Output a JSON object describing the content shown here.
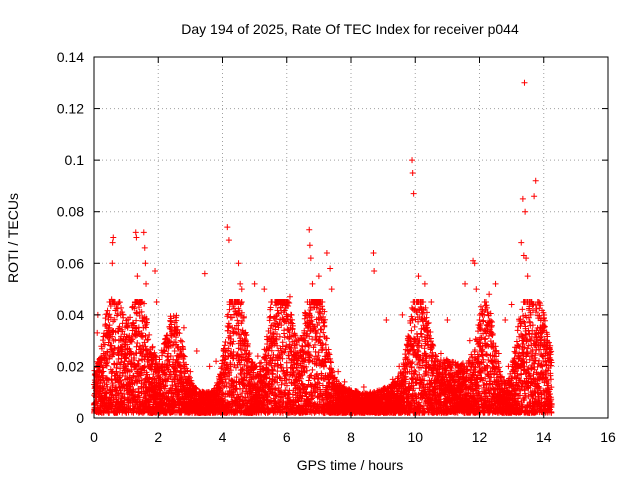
{
  "chart_data": {
    "type": "scatter",
    "title": "Day 194 of 2025, Rate Of TEC Index for receiver p044",
    "xlabel": "GPS time / hours",
    "ylabel": "ROTI / TECUs",
    "xlim": [
      0,
      16
    ],
    "ylim": [
      0,
      0.14
    ],
    "grid": true,
    "marker": "+",
    "marker_color": "#ff0000",
    "x_ticks": [
      0,
      2,
      4,
      6,
      8,
      10,
      12,
      14,
      16
    ],
    "x_tick_labels": [
      "0",
      "2",
      "4",
      "6",
      "8",
      "10",
      "12",
      "14",
      "16"
    ],
    "y_ticks": [
      0,
      0.02,
      0.04,
      0.06,
      0.08,
      0.1,
      0.12,
      0.14
    ],
    "y_tick_labels": [
      "0",
      "0.02",
      "0.04",
      "0.06",
      "0.08",
      "0.1",
      "0.12",
      "0.14"
    ],
    "series": [
      {
        "name": "ROTI",
        "x": [
          0.1,
          0.12,
          0.15,
          0.3,
          0.55,
          0.57,
          0.6,
          0.58,
          0.62,
          0.9,
          1.05,
          1.3,
          1.32,
          1.35,
          1.4,
          1.55,
          1.58,
          1.6,
          1.62,
          1.9,
          1.95,
          2.8,
          3.45,
          4.15,
          4.2,
          4.5,
          4.55,
          4.6,
          5.0,
          5.3,
          6.1,
          6.7,
          6.72,
          6.75,
          6.8,
          7.0,
          7.25,
          7.35,
          7.4,
          8.7,
          8.72,
          9.1,
          9.6,
          9.9,
          9.92,
          9.95,
          10.1,
          10.3,
          10.5,
          11.0,
          11.55,
          11.8,
          11.85,
          11.9,
          12.1,
          12.3,
          12.5,
          12.8,
          13.0,
          13.3,
          13.35,
          13.38,
          13.4,
          13.42,
          13.45,
          13.5,
          13.7,
          13.75,
          14.0,
          14.1,
          14.2,
          0.05,
          0.2,
          0.4,
          0.7,
          0.95,
          1.15,
          1.45,
          1.7,
          1.85,
          2.1,
          2.3,
          2.5,
          2.7,
          3.0,
          3.2,
          3.6,
          3.8,
          4.0,
          4.3,
          4.7,
          4.9,
          5.1,
          5.5,
          5.7,
          5.9,
          6.3,
          6.5,
          6.9,
          7.1,
          7.6,
          7.8,
          8.0,
          8.2,
          8.4,
          8.6,
          8.9,
          9.3,
          9.5,
          9.8,
          10.2,
          10.6,
          10.8,
          11.2,
          11.4,
          11.7,
          12.0,
          12.2,
          12.6,
          12.9,
          13.1,
          13.6,
          13.9,
          14.05
        ],
        "y": [
          0.033,
          0.04,
          0.02,
          0.025,
          0.046,
          0.06,
          0.07,
          0.068,
          0.045,
          0.04,
          0.035,
          0.072,
          0.07,
          0.055,
          0.043,
          0.072,
          0.066,
          0.06,
          0.052,
          0.057,
          0.045,
          0.035,
          0.056,
          0.074,
          0.069,
          0.06,
          0.052,
          0.05,
          0.052,
          0.05,
          0.047,
          0.073,
          0.067,
          0.062,
          0.052,
          0.055,
          0.064,
          0.058,
          0.05,
          0.064,
          0.057,
          0.038,
          0.04,
          0.1,
          0.095,
          0.087,
          0.055,
          0.052,
          0.045,
          0.038,
          0.052,
          0.061,
          0.06,
          0.05,
          0.04,
          0.048,
          0.052,
          0.038,
          0.044,
          0.068,
          0.085,
          0.063,
          0.13,
          0.08,
          0.062,
          0.055,
          0.086,
          0.092,
          0.035,
          0.03,
          0.028,
          0.012,
          0.015,
          0.01,
          0.018,
          0.022,
          0.03,
          0.025,
          0.02,
          0.017,
          0.02,
          0.024,
          0.015,
          0.03,
          0.018,
          0.026,
          0.02,
          0.022,
          0.014,
          0.035,
          0.028,
          0.02,
          0.024,
          0.033,
          0.028,
          0.038,
          0.03,
          0.026,
          0.034,
          0.022,
          0.018,
          0.014,
          0.01,
          0.009,
          0.012,
          0.01,
          0.008,
          0.015,
          0.02,
          0.03,
          0.028,
          0.022,
          0.025,
          0.015,
          0.018,
          0.03,
          0.035,
          0.028,
          0.025,
          0.02,
          0.018,
          0.03,
          0.03,
          0.025
        ]
      }
    ]
  }
}
